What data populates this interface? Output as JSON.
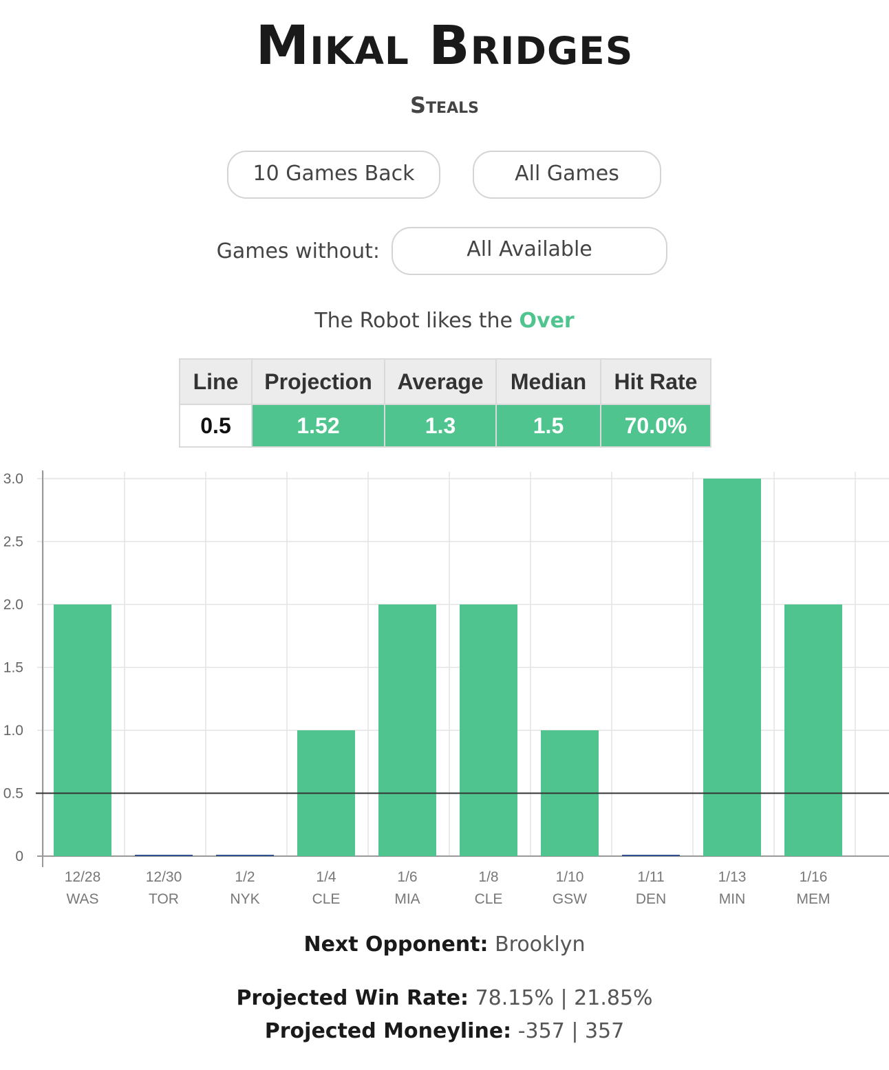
{
  "header": {
    "player_name": "Mikal Bridges",
    "stat_name": "Steals"
  },
  "filters": {
    "range_label": "10 Games Back",
    "all_label": "All Games",
    "without_label": "Games without:",
    "without_value": "All Available"
  },
  "robot": {
    "text": "The Robot likes the ",
    "pick": "Over"
  },
  "stats_table": {
    "headers": [
      "Line",
      "Projection",
      "Average",
      "Median",
      "Hit Rate"
    ],
    "values": [
      "0.5",
      "1.52",
      "1.3",
      "1.5",
      "70.0%"
    ]
  },
  "colors": {
    "accent_green": "#4fc48e",
    "zero_bar_blue": "#2f4f8f",
    "line_color": "#333333"
  },
  "chart_data": {
    "type": "bar",
    "categories": [
      "12/28 WAS",
      "12/30 TOR",
      "1/2 NYK",
      "1/4 CLE",
      "1/6 MIA",
      "1/8 CLE",
      "1/10 GSW",
      "1/11 DEN",
      "1/13 MIN",
      "1/16 MEM"
    ],
    "dates": [
      "12/28",
      "12/30",
      "1/2",
      "1/4",
      "1/6",
      "1/8",
      "1/10",
      "1/11",
      "1/13",
      "1/16"
    ],
    "opponents": [
      "WAS",
      "TOR",
      "NYK",
      "CLE",
      "MIA",
      "CLE",
      "GSW",
      "DEN",
      "MIN",
      "MEM"
    ],
    "values": [
      2,
      0,
      0,
      1,
      2,
      2,
      1,
      0,
      3,
      2
    ],
    "reference_line": 0.5,
    "ylim": [
      0,
      3
    ],
    "yticks": [
      "0",
      "0.5",
      "1.0",
      "1.5",
      "2.0",
      "2.5",
      "3.0"
    ],
    "title": "",
    "xlabel": "",
    "ylabel": "",
    "grid": true
  },
  "footer": {
    "next_label": "Next Opponent:",
    "next_value": " Brooklyn",
    "win_label": "Projected Win Rate:",
    "win_value": " 78.15% | 21.85%",
    "ml_label": "Projected Moneyline:",
    "ml_value": " -357 | 357"
  }
}
